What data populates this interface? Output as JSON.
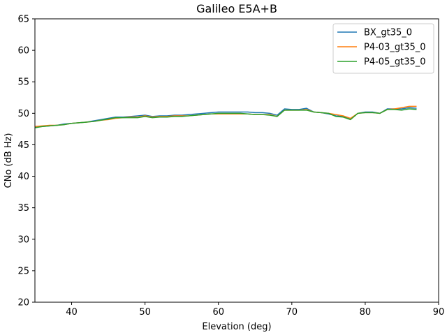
{
  "chart_data": {
    "type": "line",
    "title": "Galileo E5A+B",
    "xlabel": "Elevation (deg)",
    "ylabel": "CNo (dB Hz)",
    "xlim": [
      35,
      90
    ],
    "ylim": [
      20,
      65
    ],
    "xticks": [
      40,
      50,
      60,
      70,
      80,
      90
    ],
    "yticks": [
      20,
      25,
      30,
      35,
      40,
      45,
      50,
      55,
      60,
      65
    ],
    "grid": false,
    "legend_position": "top-right",
    "x": [
      35,
      36,
      37,
      38,
      39,
      40,
      41,
      42,
      43,
      44,
      45,
      46,
      47,
      48,
      49,
      50,
      51,
      52,
      53,
      54,
      55,
      56,
      57,
      58,
      59,
      60,
      61,
      62,
      63,
      64,
      65,
      66,
      67,
      68,
      69,
      70,
      71,
      72,
      73,
      74,
      75,
      76,
      77,
      78,
      79,
      80,
      81,
      82,
      83,
      84,
      85,
      86,
      87
    ],
    "series": [
      {
        "name": "BX_gt35_0",
        "color": "#1f77b4",
        "values": [
          47.8,
          47.9,
          48.0,
          48.1,
          48.3,
          48.4,
          48.5,
          48.6,
          48.8,
          49.0,
          49.2,
          49.4,
          49.4,
          49.5,
          49.6,
          49.7,
          49.5,
          49.6,
          49.6,
          49.7,
          49.7,
          49.8,
          49.9,
          50.0,
          50.1,
          50.2,
          50.2,
          50.2,
          50.2,
          50.2,
          50.1,
          50.1,
          50.0,
          49.7,
          50.7,
          50.6,
          50.6,
          50.8,
          50.2,
          50.1,
          49.9,
          49.6,
          49.5,
          49.1,
          50.0,
          50.2,
          50.2,
          50.0,
          50.7,
          50.7,
          50.7,
          50.9,
          50.8
        ]
      },
      {
        "name": "P4-03_gt35_0",
        "color": "#ff7f0e",
        "values": [
          47.9,
          48.0,
          48.1,
          48.1,
          48.2,
          48.4,
          48.5,
          48.6,
          48.7,
          48.9,
          49.0,
          49.2,
          49.3,
          49.4,
          49.4,
          49.6,
          49.4,
          49.5,
          49.5,
          49.6,
          49.6,
          49.6,
          49.7,
          49.8,
          49.9,
          49.9,
          49.9,
          49.9,
          49.9,
          49.9,
          49.8,
          49.8,
          49.8,
          49.5,
          50.5,
          50.5,
          50.5,
          50.6,
          50.2,
          50.1,
          50.0,
          49.8,
          49.6,
          49.2,
          50.0,
          50.1,
          50.1,
          50.0,
          50.6,
          50.7,
          50.9,
          51.1,
          51.1
        ]
      },
      {
        "name": "P4-05_gt35_0",
        "color": "#2ca02c",
        "values": [
          47.7,
          47.9,
          48.0,
          48.1,
          48.2,
          48.4,
          48.5,
          48.6,
          48.7,
          48.9,
          49.1,
          49.3,
          49.3,
          49.3,
          49.3,
          49.5,
          49.3,
          49.4,
          49.4,
          49.5,
          49.5,
          49.6,
          49.7,
          49.8,
          49.9,
          50.0,
          50.0,
          50.0,
          50.0,
          49.9,
          49.8,
          49.8,
          49.7,
          49.5,
          50.5,
          50.5,
          50.5,
          50.5,
          50.2,
          50.1,
          50.0,
          49.5,
          49.4,
          49.0,
          50.0,
          50.1,
          50.1,
          50.0,
          50.6,
          50.6,
          50.5,
          50.7,
          50.6
        ]
      }
    ]
  }
}
